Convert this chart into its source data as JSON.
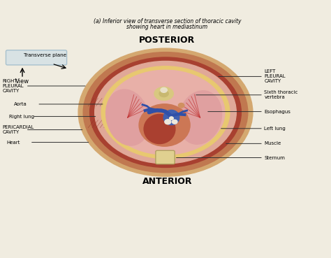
{
  "bg_color": "#f0ece0",
  "title": "ANTERIOR",
  "posterior_label": "POSTERIOR",
  "caption_line1": "(a) Inferior view of transverse section of thoracic cavity",
  "caption_line2": "showing heart in mediastinum",
  "transverse_label": "Transverse plane",
  "view_label": "View",
  "outer_body_color": "#d4a870",
  "skin_color": "#c07850",
  "muscle_color": "#a84030",
  "pleural_inner_color": "#e0a898",
  "fat_color": "#e8c870",
  "pleural_color": "#e8b0a8",
  "lung_color": "#e0a0a0",
  "pericardial_color": "#cc7755",
  "heart_color": "#aa4030",
  "vessel_color": "#4060b0",
  "vertebra_color": "#d8c880",
  "esoph_color": "#d09060",
  "sternum_color": "#e0d090"
}
